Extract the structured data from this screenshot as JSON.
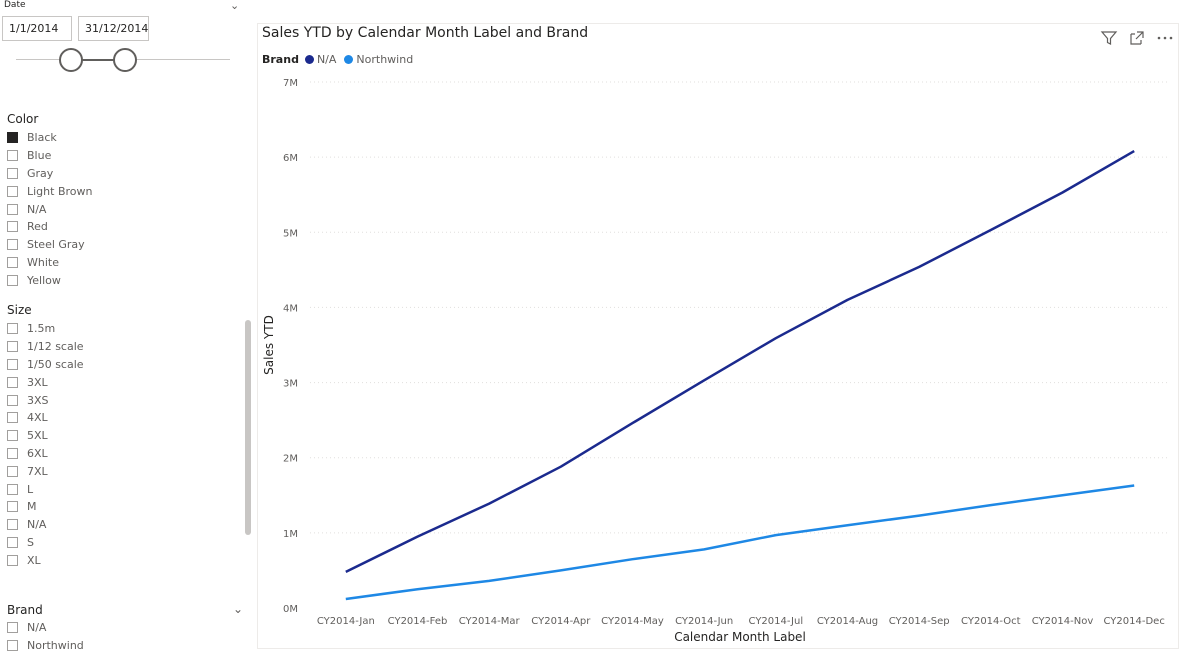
{
  "date_slicer": {
    "header": "Date",
    "start": "1/1/2014",
    "end": "31/12/2014"
  },
  "color_slicer": {
    "title": "Color",
    "items": [
      {
        "label": "Black",
        "checked": true
      },
      {
        "label": "Blue",
        "checked": false
      },
      {
        "label": "Gray",
        "checked": false
      },
      {
        "label": "Light Brown",
        "checked": false
      },
      {
        "label": "N/A",
        "checked": false
      },
      {
        "label": "Red",
        "checked": false
      },
      {
        "label": "Steel Gray",
        "checked": false
      },
      {
        "label": "White",
        "checked": false
      },
      {
        "label": "Yellow",
        "checked": false
      }
    ]
  },
  "size_slicer": {
    "title": "Size",
    "items": [
      {
        "label": "1.5m"
      },
      {
        "label": "1/12 scale"
      },
      {
        "label": "1/50 scale"
      },
      {
        "label": "3XL"
      },
      {
        "label": "3XS"
      },
      {
        "label": "4XL"
      },
      {
        "label": "5XL"
      },
      {
        "label": "6XL"
      },
      {
        "label": "7XL"
      },
      {
        "label": "L"
      },
      {
        "label": "M"
      },
      {
        "label": "N/A"
      },
      {
        "label": "S"
      },
      {
        "label": "XL"
      }
    ]
  },
  "brand_slicer": {
    "title": "Brand",
    "items": [
      {
        "label": "N/A"
      },
      {
        "label": "Northwind"
      }
    ]
  },
  "toolbar_icons": [
    "filter-icon",
    "focus-mode-icon",
    "more-options-icon"
  ],
  "chart_data": {
    "type": "line",
    "title": "Sales YTD by Calendar Month Label and Brand",
    "legend_title": "Brand",
    "legend_position": "top-left",
    "xlabel": "Calendar Month Label",
    "ylabel": "Sales YTD",
    "categories": [
      "CY2014-Jan",
      "CY2014-Feb",
      "CY2014-Mar",
      "CY2014-Apr",
      "CY2014-May",
      "CY2014-Jun",
      "CY2014-Jul",
      "CY2014-Aug",
      "CY2014-Sep",
      "CY2014-Oct",
      "CY2014-Nov",
      "CY2014-Dec"
    ],
    "yticks": [
      "0M",
      "1M",
      "2M",
      "3M",
      "4M",
      "5M",
      "6M",
      "7M"
    ],
    "ylim": [
      0,
      7000000
    ],
    "grid": true,
    "series": [
      {
        "name": "N/A",
        "color": "#1b2a8e",
        "values": [
          480000,
          950000,
          1390000,
          1880000,
          2460000,
          3030000,
          3590000,
          4100000,
          4540000,
          5030000,
          5530000,
          6080000
        ]
      },
      {
        "name": "Northwind",
        "color": "#1e88e5",
        "values": [
          120000,
          250000,
          360000,
          500000,
          650000,
          780000,
          970000,
          1100000,
          1230000,
          1370000,
          1500000,
          1630000
        ]
      }
    ]
  }
}
